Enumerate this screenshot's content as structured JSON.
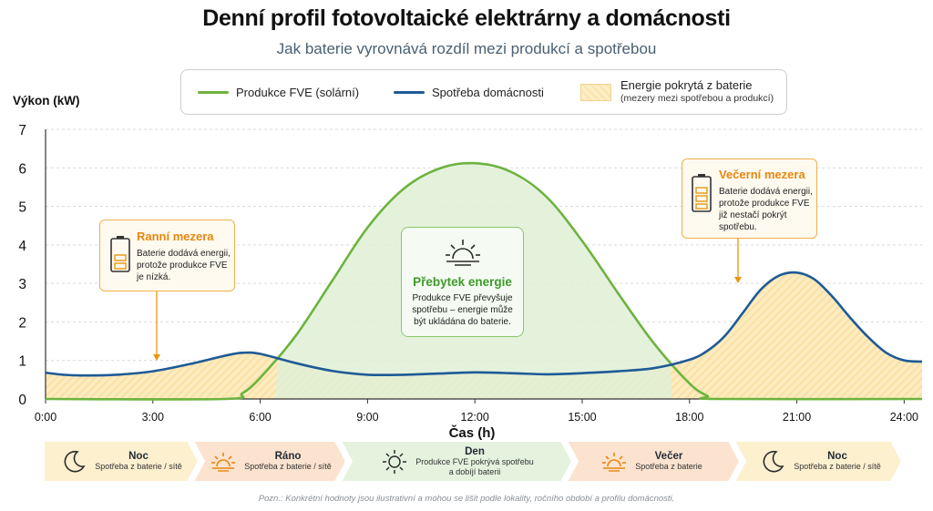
{
  "title": "Denní profil fotovoltaické elektrárny a domácnosti",
  "subtitle": "Jak baterie vyrovnává rozdíl mezi produkcí a spotřebou",
  "legend": {
    "pv_label": "Produkce FVE (solární)",
    "consumption_label": "Spotřeba domácnosti",
    "battery_label": "Energie pokrytá z baterie",
    "battery_sub": "(mezery mezi spotřebou a produkcí)"
  },
  "colors": {
    "pv": "#6db33f",
    "consumption": "#1f5a96",
    "battery_fill": "#fbe3a8",
    "surplus_fill": "#dff0d6",
    "accent_orange": "#e8860e"
  },
  "callouts": {
    "morning": {
      "title": "Ranní mezera",
      "body": [
        "Baterie dodává energii,",
        "protože produkce FVE",
        "je nízká."
      ]
    },
    "evening": {
      "title": "Večerní mezera",
      "body": [
        "Baterie dodává energii,",
        "protože produkce FVE",
        "již nestačí pokrýt",
        "spotřebu."
      ]
    },
    "surplus": {
      "title": "Přebytek energie",
      "body": [
        "Produkce FVE převyšuje",
        "spotřebu – energie může",
        "být ukládána do baterie."
      ]
    }
  },
  "phases": [
    {
      "title": "Noc",
      "desc": [
        "Spotřeba z baterie / sítě"
      ],
      "icon": "moon-icon"
    },
    {
      "title": "Ráno",
      "desc": [
        "Spotřeba z baterie / sítě"
      ],
      "icon": "sunrise-icon"
    },
    {
      "title": "Den",
      "desc": [
        "Produkce FVE pokrývá spotřebu",
        "a dobíjí baterii"
      ],
      "icon": "sun-icon"
    },
    {
      "title": "Večer",
      "desc": [
        "Spotřeba z baterie"
      ],
      "icon": "sunset-icon"
    },
    {
      "title": "Noc",
      "desc": [
        "Spotřeba z baterie / sítě"
      ],
      "icon": "moon-icon"
    }
  ],
  "note": "Pozn.: Konkrétní hodnoty jsou ilustrativní a mohou se lišit podle lokality, ročního období a profilu domácnosti.",
  "chart_data": {
    "type": "area",
    "title": "Denní profil fotovoltaické elektrárny a domácnosti",
    "xlabel": "Čas (h)",
    "ylabel": "Výkon (kW)",
    "xlim": [
      0,
      24.5
    ],
    "ylim": [
      0,
      7
    ],
    "x_ticks": [
      0,
      3,
      6,
      9,
      12,
      15,
      18,
      21,
      24
    ],
    "x_tick_labels": [
      "0:00",
      "3:00",
      "6:00",
      "9:00",
      "12:00",
      "15:00",
      "18:00",
      "21:00",
      "24:00"
    ],
    "y_ticks": [
      0,
      1,
      2,
      3,
      4,
      5,
      6,
      7
    ],
    "y_tick_labels": [
      "0",
      "1",
      "2",
      "3",
      "4",
      "5",
      "6",
      "7"
    ],
    "grid": true,
    "legend_position": "top",
    "series": [
      {
        "name": "Produkce FVE (solární)",
        "x": [
          0,
          5.0,
          5.5,
          6.0,
          7.0,
          8.0,
          9.0,
          10.0,
          11.0,
          12.0,
          13.0,
          14.0,
          15.0,
          16.0,
          17.0,
          18.0,
          18.5,
          18.8,
          24.5
        ],
        "y": [
          0,
          0,
          0.15,
          0.55,
          1.65,
          3.05,
          4.45,
          5.45,
          5.98,
          6.12,
          5.9,
          5.25,
          4.1,
          2.75,
          1.45,
          0.4,
          0.08,
          0,
          0
        ]
      },
      {
        "name": "Spotřeba domácnosti",
        "x": [
          0,
          0.5,
          1.0,
          2.0,
          3.0,
          4.0,
          5.0,
          5.5,
          6.0,
          7.0,
          8.0,
          9.0,
          10.0,
          11.0,
          12.0,
          13.0,
          14.0,
          15.0,
          16.0,
          17.0,
          18.0,
          18.5,
          19.0,
          19.5,
          20.0,
          20.5,
          21.0,
          21.5,
          22.0,
          22.5,
          23.0,
          23.5,
          24.0,
          24.5
        ],
        "y": [
          0.68,
          0.63,
          0.61,
          0.63,
          0.72,
          0.9,
          1.12,
          1.2,
          1.17,
          0.93,
          0.73,
          0.63,
          0.63,
          0.66,
          0.69,
          0.67,
          0.64,
          0.67,
          0.72,
          0.8,
          1.02,
          1.25,
          1.65,
          2.25,
          2.85,
          3.2,
          3.28,
          3.1,
          2.65,
          2.1,
          1.6,
          1.2,
          1.0,
          0.97
        ]
      }
    ],
    "annotations": [
      "Ranní mezera",
      "Přebytek energie",
      "Večerní mezera"
    ]
  }
}
